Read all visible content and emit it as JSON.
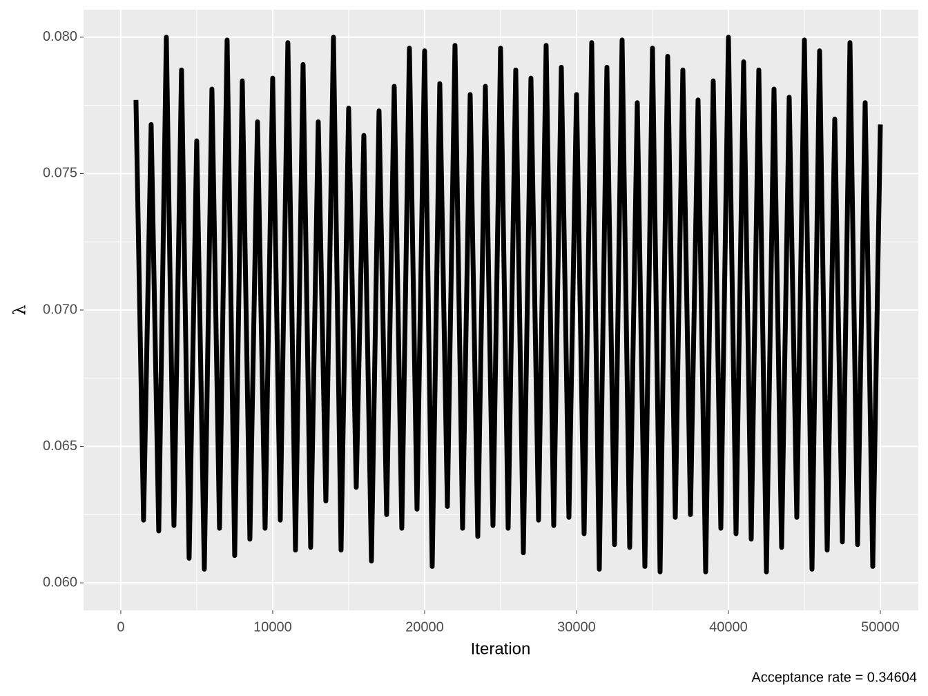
{
  "chart_data": {
    "type": "line",
    "x_label": "Iteration",
    "y_label": "λ",
    "caption": "Acceptance rate =  0.34604",
    "x": [
      1000,
      1500,
      2000,
      2500,
      3000,
      3500,
      4000,
      4500,
      5000,
      5500,
      6000,
      6500,
      7000,
      7500,
      8000,
      8500,
      9000,
      9500,
      10000,
      10500,
      11000,
      11500,
      12000,
      12500,
      13000,
      13500,
      14000,
      14500,
      15000,
      15500,
      16000,
      16500,
      17000,
      17500,
      18000,
      18500,
      19000,
      19500,
      20000,
      20500,
      21000,
      21500,
      22000,
      22500,
      23000,
      23500,
      24000,
      24500,
      25000,
      25500,
      26000,
      26500,
      27000,
      27500,
      28000,
      28500,
      29000,
      29500,
      30000,
      30500,
      31000,
      31500,
      32000,
      32500,
      33000,
      33500,
      34000,
      34500,
      35000,
      35500,
      36000,
      36500,
      37000,
      37500,
      38000,
      38500,
      39000,
      39500,
      40000,
      40500,
      41000,
      41500,
      42000,
      42500,
      43000,
      43500,
      44000,
      44500,
      45000,
      45500,
      46000,
      46500,
      47000,
      47500,
      48000,
      48500,
      49000,
      49500,
      50000
    ],
    "series": [
      {
        "color": "#000000",
        "values": [
          0.0777,
          0.0623,
          0.0768,
          0.0619,
          0.08,
          0.0621,
          0.0788,
          0.0609,
          0.0762,
          0.0605,
          0.0781,
          0.062,
          0.0799,
          0.061,
          0.0784,
          0.0616,
          0.0769,
          0.062,
          0.0785,
          0.0623,
          0.0798,
          0.0612,
          0.079,
          0.0613,
          0.0769,
          0.063,
          0.08,
          0.0612,
          0.0774,
          0.0635,
          0.0764,
          0.0608,
          0.0773,
          0.0625,
          0.0782,
          0.062,
          0.0796,
          0.0627,
          0.0795,
          0.0606,
          0.0783,
          0.0628,
          0.0797,
          0.062,
          0.0779,
          0.0617,
          0.0782,
          0.0621,
          0.0796,
          0.062,
          0.0788,
          0.0611,
          0.0785,
          0.0623,
          0.0797,
          0.0621,
          0.0789,
          0.0624,
          0.0779,
          0.0618,
          0.0798,
          0.0605,
          0.0789,
          0.0614,
          0.0799,
          0.0613,
          0.0776,
          0.0606,
          0.0796,
          0.0604,
          0.0793,
          0.0624,
          0.0788,
          0.0625,
          0.0777,
          0.0604,
          0.0784,
          0.062,
          0.08,
          0.0618,
          0.0791,
          0.0616,
          0.0788,
          0.0604,
          0.0781,
          0.0613,
          0.0778,
          0.0624,
          0.0799,
          0.0605,
          0.0795,
          0.0612,
          0.077,
          0.0615,
          0.0798,
          0.0614,
          0.0776,
          0.0606,
          0.0768
        ]
      }
    ],
    "xlim": [
      -2450,
      52500
    ],
    "xticks": [
      0,
      10000,
      20000,
      30000,
      40000,
      50000
    ],
    "ylim": [
      0.05899,
      0.08101
    ],
    "yticks": [
      {
        "value": 0.06,
        "label": "0.060"
      },
      0.065,
      {
        "value": 0.07,
        "label": "0.070"
      },
      0.075,
      {
        "value": 0.08,
        "label": "0.080"
      }
    ],
    "grid": true
  }
}
